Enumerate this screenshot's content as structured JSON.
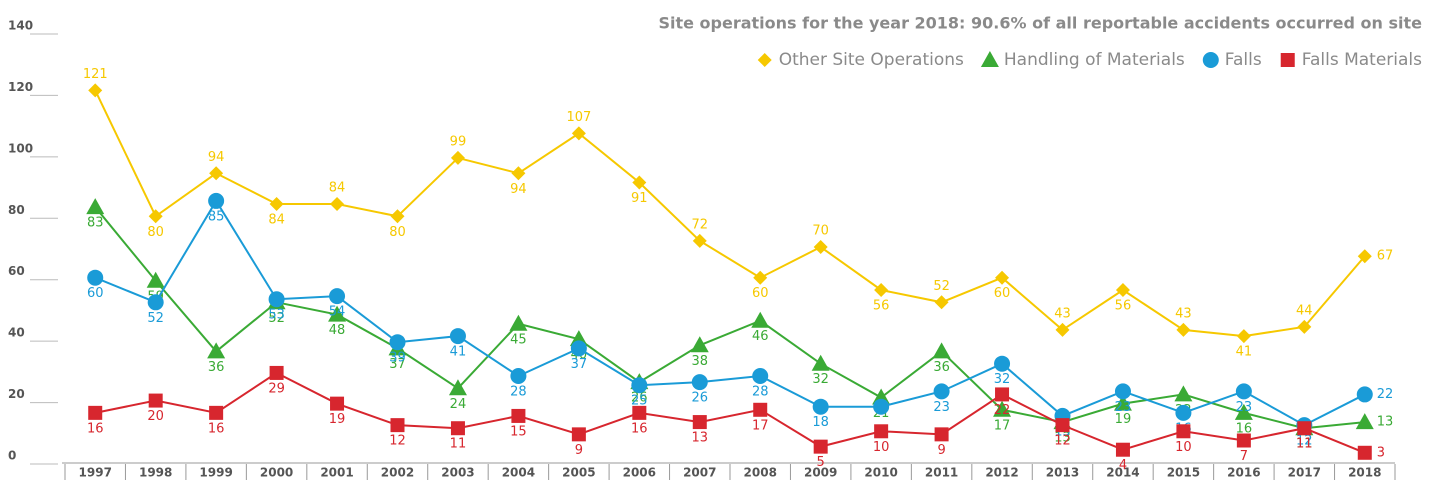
{
  "chart_data": {
    "type": "line",
    "title": "Site operations for the year 2018: 90.6% of all reportable accidents occurred on site",
    "categories": [
      "1997",
      "1998",
      "1999",
      "2000",
      "2001",
      "2002",
      "2003",
      "2004",
      "2005",
      "2006",
      "2007",
      "2008",
      "2009",
      "2010",
      "2011",
      "2012",
      "2013",
      "2014",
      "2015",
      "2016",
      "2017",
      "2018"
    ],
    "ylim": [
      0,
      140
    ],
    "yticks": [
      0,
      20,
      40,
      60,
      80,
      100,
      120,
      140
    ],
    "series": [
      {
        "name": "Other Site Operations",
        "color": "#f6c800",
        "marker": "diamond",
        "values": [
          121,
          80,
          94,
          84,
          84,
          80,
          99,
          94,
          107,
          91,
          72,
          60,
          70,
          56,
          52,
          60,
          43,
          56,
          43,
          41,
          44,
          67
        ]
      },
      {
        "name": "Handling of Materials",
        "color": "#3aaa35",
        "marker": "triangle",
        "values": [
          83,
          59,
          36,
          52,
          48,
          37,
          24,
          45,
          40,
          26,
          38,
          46,
          32,
          21,
          36,
          17,
          13,
          19,
          22,
          16,
          11,
          13
        ]
      },
      {
        "name": "Falls",
        "color": "#1a9bd7",
        "marker": "circle",
        "values": [
          60,
          52,
          85,
          53,
          54,
          39,
          41,
          28,
          37,
          25,
          26,
          28,
          18,
          18,
          23,
          32,
          15,
          23,
          16,
          23,
          12,
          22
        ],
        "value_labels": [
          "60",
          "52",
          "85",
          "53",
          "54",
          "39",
          "41",
          "28",
          "37",
          "25",
          "26",
          "28",
          "18",
          null,
          "23",
          "32",
          "15",
          "23",
          "16",
          "23",
          "12",
          "22"
        ]
      },
      {
        "name": "Falls Materials",
        "color": "#d7262e",
        "marker": "square",
        "values": [
          16,
          20,
          16,
          29,
          19,
          12,
          11,
          15,
          9,
          16,
          13,
          17,
          5,
          10,
          9,
          22,
          12,
          4,
          10,
          7,
          11,
          3
        ]
      }
    ]
  }
}
